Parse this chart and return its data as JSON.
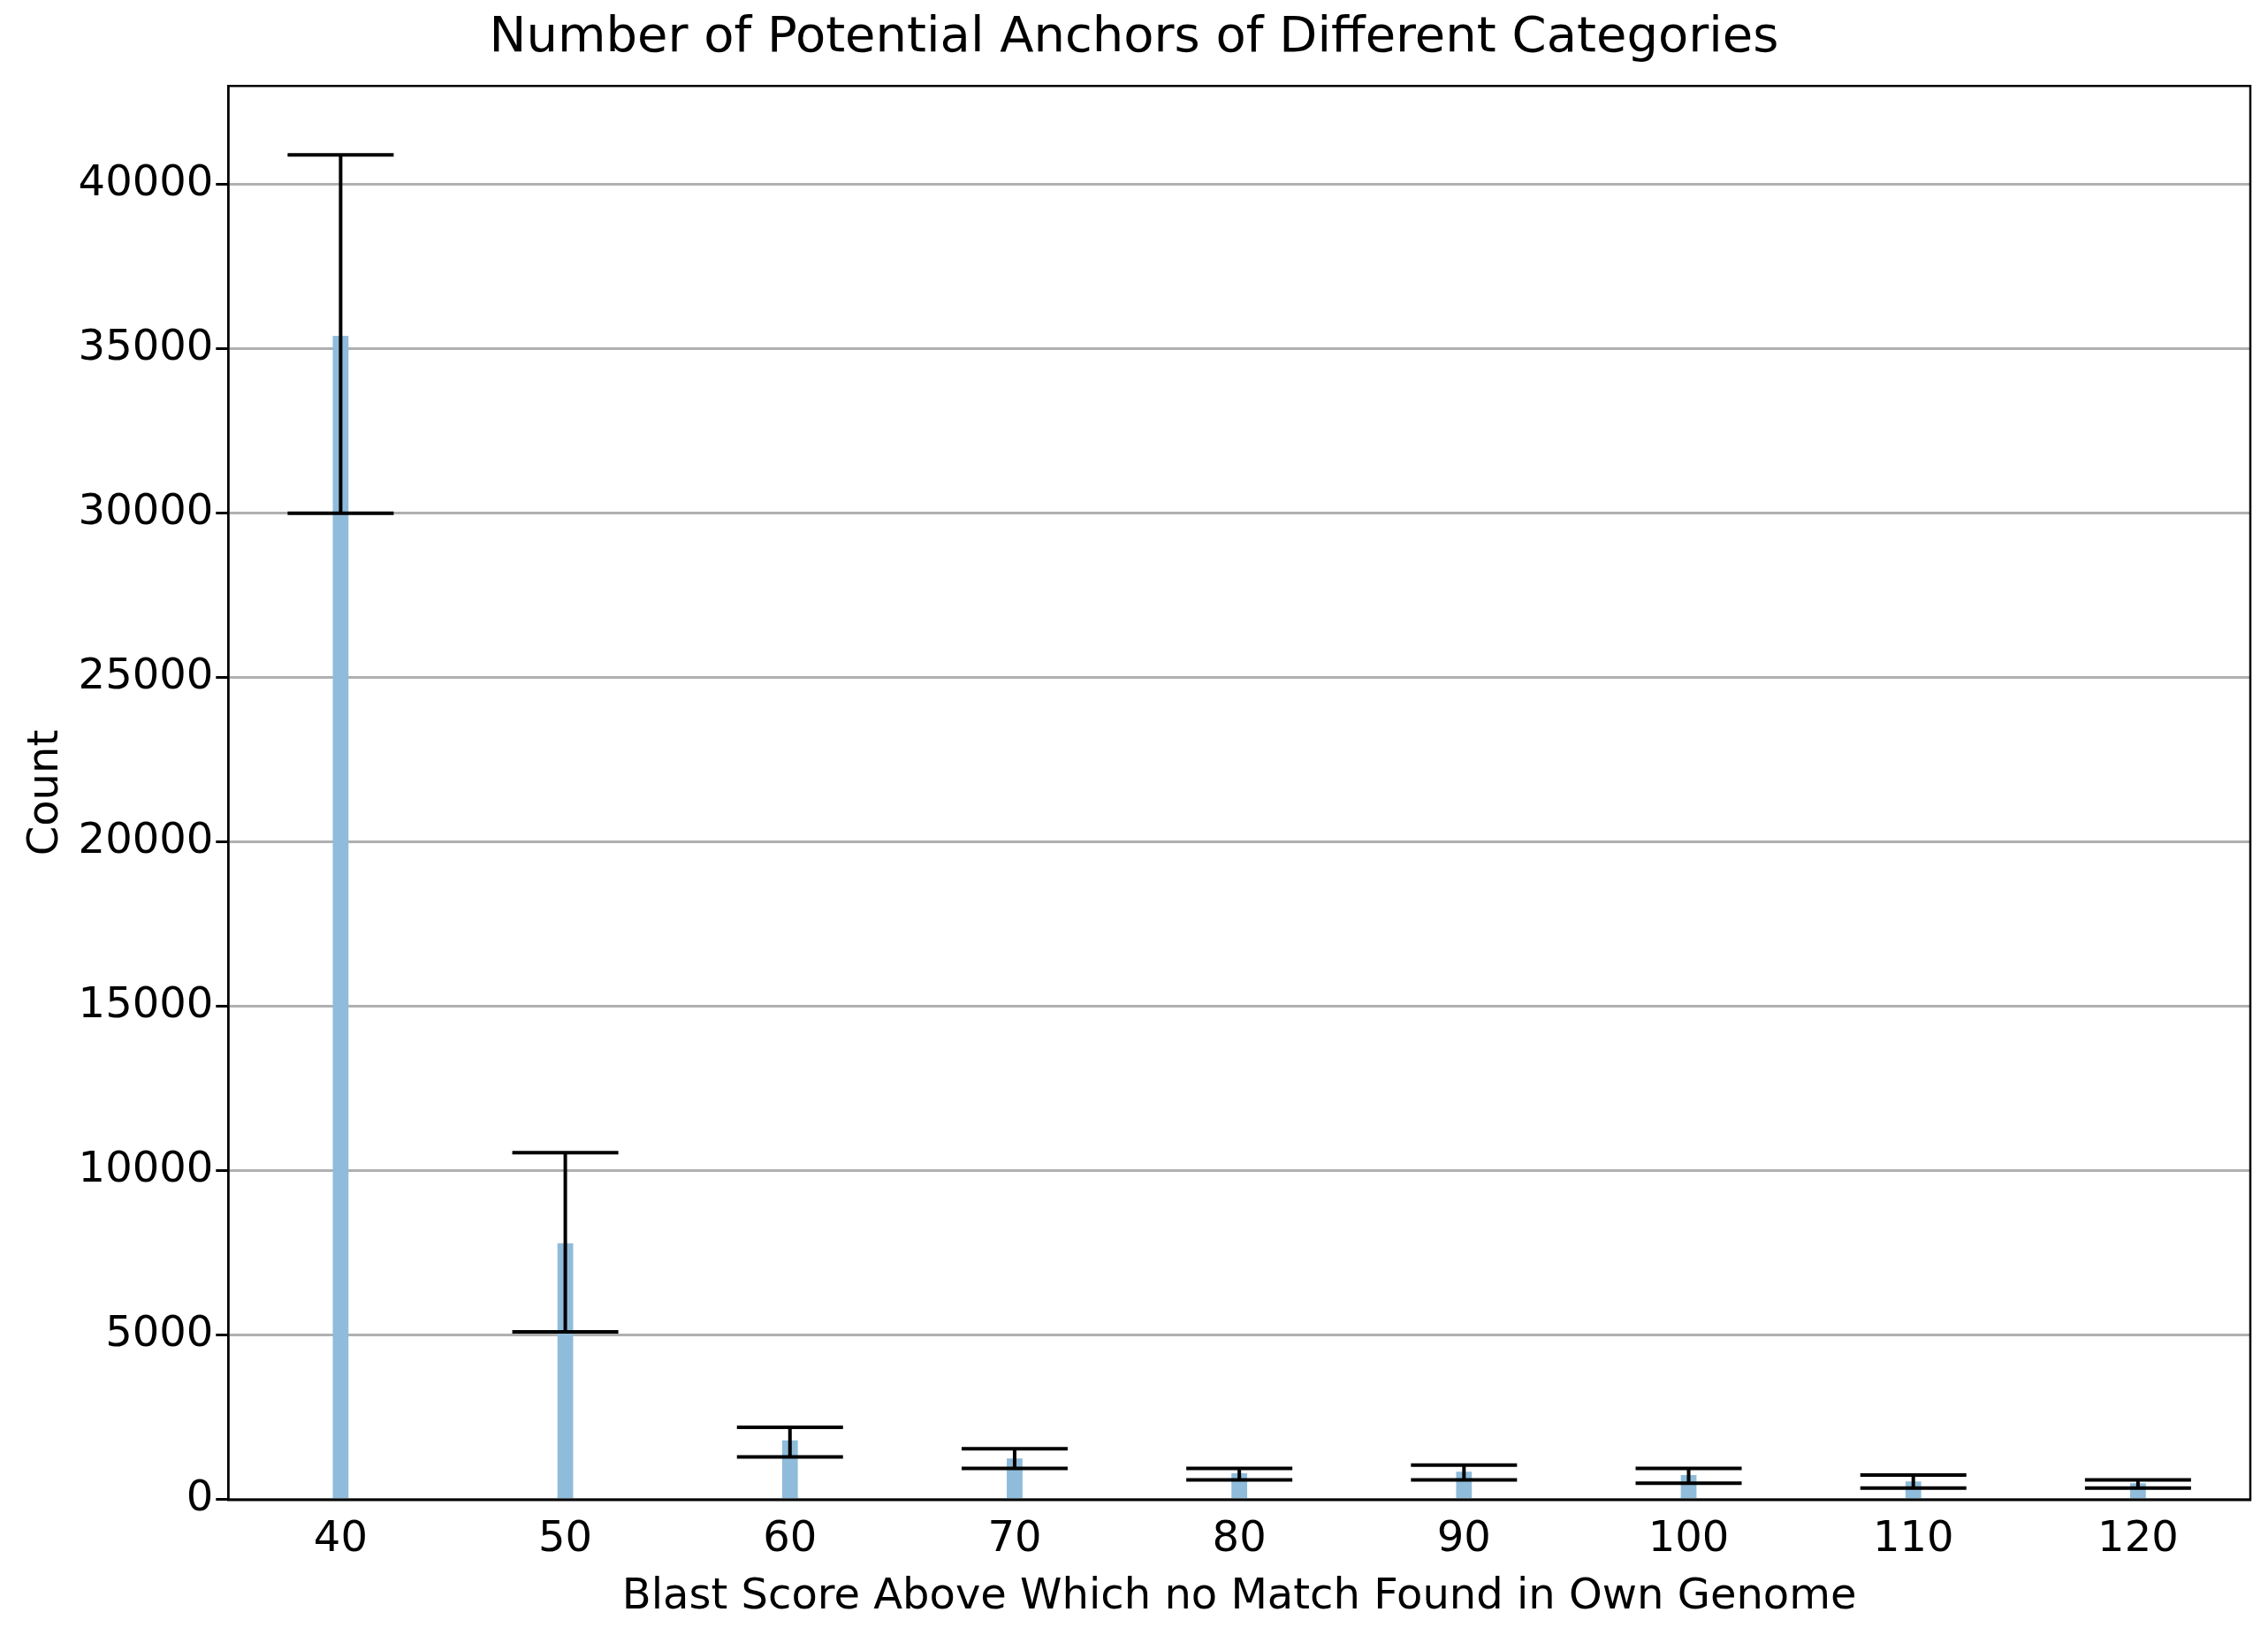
{
  "chart_data": {
    "type": "bar",
    "title": "Number of Potential Anchors of Different Categories",
    "xlabel": "Blast Score Above Which no Match Found in Own Genome",
    "ylabel": "Count",
    "categories": [
      "40",
      "50",
      "60",
      "70",
      "80",
      "90",
      "100",
      "110",
      "120"
    ],
    "values": [
      35400,
      7800,
      1800,
      1250,
      800,
      850,
      750,
      550,
      500
    ],
    "errors": [
      [
        30000,
        40900
      ],
      [
        5100,
        10550
      ],
      [
        1300,
        2200
      ],
      [
        950,
        1550
      ],
      [
        600,
        950
      ],
      [
        600,
        1050
      ],
      [
        500,
        950
      ],
      [
        350,
        750
      ],
      [
        350,
        600
      ]
    ],
    "color": "#8fbcdb",
    "ylim": [
      0,
      43000
    ],
    "yticks": [
      0,
      5000,
      10000,
      15000,
      20000,
      25000,
      30000,
      35000,
      40000
    ],
    "grid": "y"
  }
}
